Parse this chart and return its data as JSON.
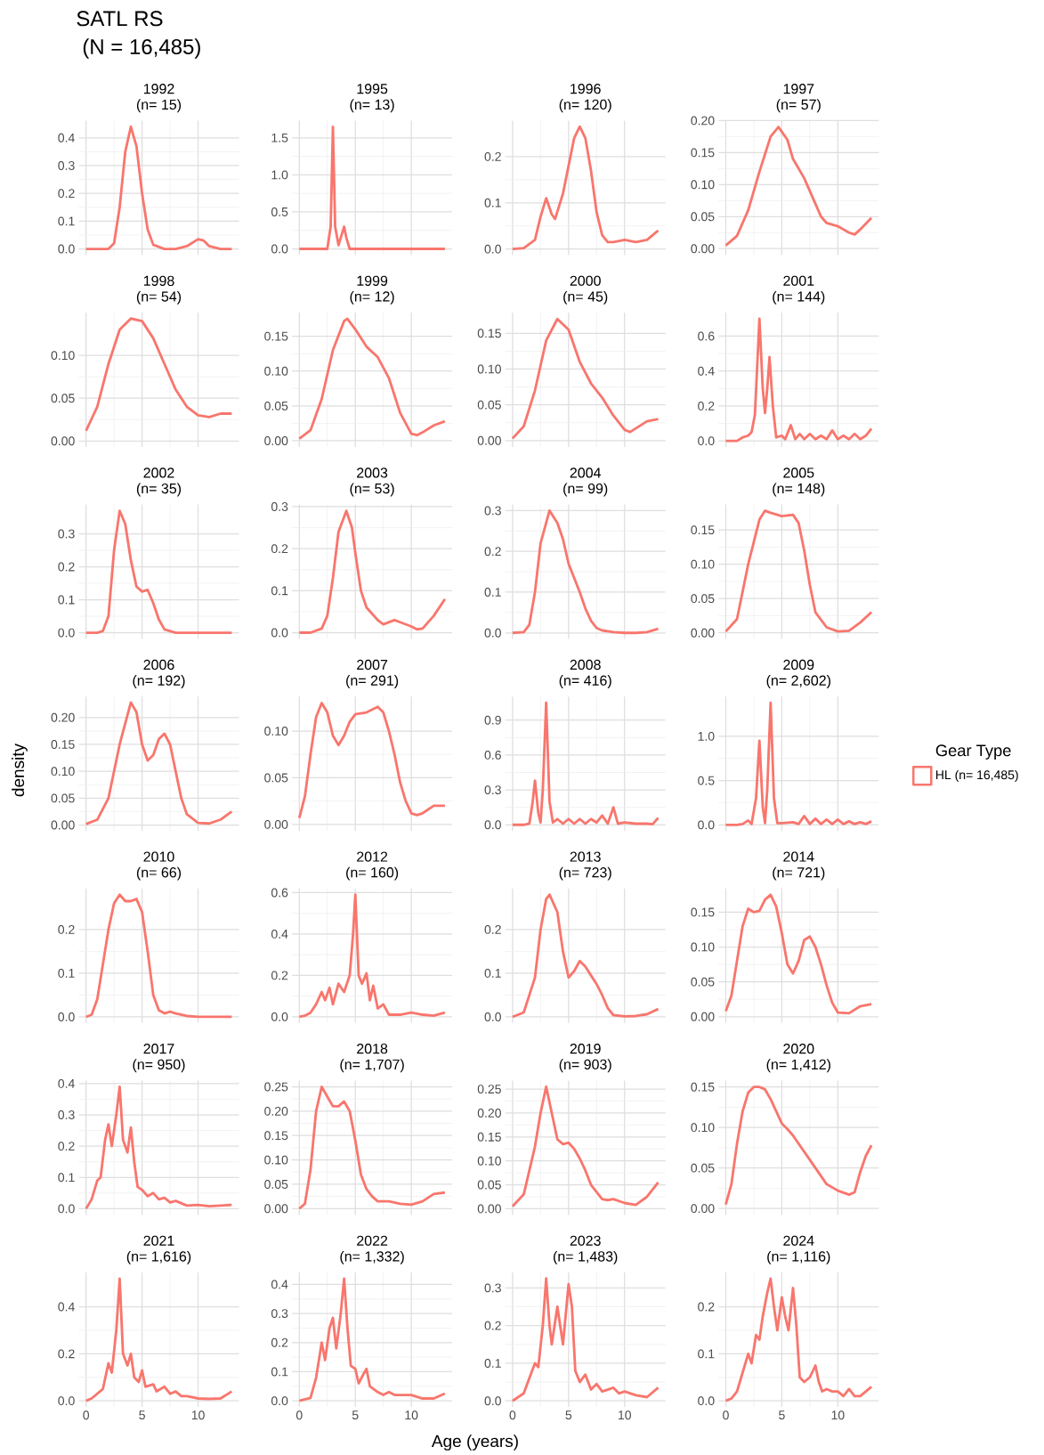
{
  "chart_data": [
    {
      "type": "other",
      "title": "SATL RS",
      "subtitle": "(N = 16,485)",
      "xlabel": "Age (years)",
      "ylabel": "density"
    },
    {
      "type": "line",
      "title": "1992",
      "subtitle": "(n= 15)",
      "xlim": [
        -0.65,
        13.65
      ],
      "xticks": [
        0,
        5,
        10
      ],
      "ylim": [
        -0.022,
        0.462
      ],
      "yticks": [
        {
          "value": 0,
          "label": "0.0"
        },
        0.1,
        0.2,
        0.3,
        0.4
      ],
      "grid": true,
      "tick_labels": "y",
      "series": [
        {
          "color": "#f8766d",
          "x": [
            0,
            2,
            2.5,
            3,
            3.5,
            4,
            4.5,
            5,
            5.5,
            6,
            7,
            8,
            9,
            10,
            10.5,
            11,
            12,
            13
          ],
          "values": [
            0,
            0,
            0.02,
            0.15,
            0.35,
            0.44,
            0.37,
            0.2,
            0.07,
            0.015,
            0,
            0,
            0.01,
            0.035,
            0.03,
            0.01,
            0,
            0
          ]
        }
      ]
    },
    {
      "type": "line",
      "title": "1995",
      "subtitle": "(n= 13)",
      "xlim": [
        -0.65,
        13.65
      ],
      "xticks": [
        0,
        5,
        10
      ],
      "ylim": [
        -0.083,
        1.733
      ],
      "yticks": [
        {
          "value": 0,
          "label": "0.0"
        },
        0.5,
        {
          "value": 1,
          "label": "1.0"
        },
        1.5
      ],
      "grid": true,
      "tick_labels": "y",
      "series": [
        {
          "color": "#f8766d",
          "x": [
            0,
            2.5,
            2.8,
            3,
            3.2,
            3.5,
            3.8,
            4,
            4.2,
            4.5,
            13
          ],
          "values": [
            0,
            0,
            0.3,
            1.65,
            0.3,
            0.05,
            0.2,
            0.3,
            0.15,
            0,
            0
          ]
        }
      ]
    },
    {
      "type": "line",
      "title": "1996",
      "subtitle": "(n= 120)",
      "xlim": [
        -0.65,
        13.65
      ],
      "xticks": [
        0,
        5,
        10
      ],
      "ylim": [
        -0.013,
        0.278
      ],
      "yticks": [
        {
          "value": 0,
          "label": "0.0"
        },
        0.1,
        0.2
      ],
      "grid": true,
      "tick_labels": "y",
      "series": [
        {
          "color": "#f8766d",
          "x": [
            0,
            1,
            2,
            2.5,
            3,
            3.5,
            3.8,
            4.5,
            5,
            5.5,
            6,
            6.5,
            7,
            7.5,
            8,
            8.5,
            9,
            10,
            11,
            12,
            13
          ],
          "values": [
            0,
            0.002,
            0.02,
            0.07,
            0.11,
            0.075,
            0.065,
            0.12,
            0.18,
            0.24,
            0.265,
            0.24,
            0.17,
            0.08,
            0.03,
            0.015,
            0.015,
            0.02,
            0.015,
            0.02,
            0.04
          ]
        }
      ]
    },
    {
      "type": "line",
      "title": "1997",
      "subtitle": "(n= 57)",
      "xlim": [
        -0.65,
        13.65
      ],
      "xticks": [
        0,
        5,
        10
      ],
      "ylim": [
        -0.01,
        0.2
      ],
      "yticks": [
        {
          "value": 0,
          "label": "0.00"
        },
        0.05,
        {
          "value": 0.1,
          "label": "0.10"
        },
        0.15,
        {
          "value": 0.2,
          "label": "0.20"
        }
      ],
      "grid": true,
      "tick_labels": "y",
      "series": [
        {
          "color": "#f8766d",
          "x": [
            0,
            1,
            2,
            3,
            4,
            4.7,
            5.5,
            6,
            7,
            8,
            8.5,
            9,
            10,
            11,
            11.5,
            12,
            13
          ],
          "values": [
            0.005,
            0.02,
            0.06,
            0.12,
            0.175,
            0.19,
            0.17,
            0.14,
            0.11,
            0.07,
            0.05,
            0.04,
            0.035,
            0.025,
            0.022,
            0.03,
            0.048
          ]
        }
      ]
    },
    {
      "type": "line",
      "title": "1998",
      "subtitle": "(n= 54)",
      "xlim": [
        -0.65,
        13.65
      ],
      "xticks": [
        0,
        5,
        10
      ],
      "ylim": [
        -0.007,
        0.15
      ],
      "yticks": [
        {
          "value": 0,
          "label": "0.00"
        },
        0.05,
        {
          "value": 0.1,
          "label": "0.10"
        }
      ],
      "grid": true,
      "tick_labels": "y",
      "series": [
        {
          "color": "#f8766d",
          "x": [
            0,
            1,
            2,
            3,
            4,
            5,
            6,
            7,
            8,
            9,
            10,
            11,
            12,
            13
          ],
          "values": [
            0.012,
            0.04,
            0.09,
            0.13,
            0.143,
            0.14,
            0.12,
            0.09,
            0.06,
            0.04,
            0.03,
            0.028,
            0.032,
            0.032
          ]
        }
      ]
    },
    {
      "type": "line",
      "title": "1999",
      "subtitle": "(n= 12)",
      "xlim": [
        -0.65,
        13.65
      ],
      "xticks": [
        0,
        5,
        10
      ],
      "ylim": [
        -0.009,
        0.184
      ],
      "yticks": [
        {
          "value": 0,
          "label": "0.00"
        },
        0.05,
        {
          "value": 0.1,
          "label": "0.10"
        },
        0.15
      ],
      "grid": true,
      "tick_labels": "y",
      "series": [
        {
          "color": "#f8766d",
          "x": [
            0,
            1,
            2,
            3,
            4,
            4.3,
            5,
            6,
            7,
            8,
            9,
            10,
            10.5,
            11,
            12,
            13
          ],
          "values": [
            0.003,
            0.015,
            0.06,
            0.13,
            0.172,
            0.175,
            0.16,
            0.135,
            0.12,
            0.09,
            0.04,
            0.01,
            0.008,
            0.012,
            0.022,
            0.028
          ]
        }
      ]
    },
    {
      "type": "line",
      "title": "2000",
      "subtitle": "(n= 45)",
      "xlim": [
        -0.65,
        13.65
      ],
      "xticks": [
        0,
        5,
        10
      ],
      "ylim": [
        -0.009,
        0.179
      ],
      "yticks": [
        {
          "value": 0,
          "label": "0.00"
        },
        0.05,
        {
          "value": 0.1,
          "label": "0.10"
        },
        0.15
      ],
      "grid": true,
      "tick_labels": "y",
      "series": [
        {
          "color": "#f8766d",
          "x": [
            0,
            1,
            2,
            3,
            4,
            5,
            6,
            7,
            8,
            9,
            10,
            10.5,
            11,
            12,
            13
          ],
          "values": [
            0.003,
            0.02,
            0.07,
            0.14,
            0.17,
            0.155,
            0.11,
            0.08,
            0.06,
            0.035,
            0.015,
            0.012,
            0.017,
            0.027,
            0.03
          ]
        }
      ]
    },
    {
      "type": "line",
      "title": "2001",
      "subtitle": "(n= 144)",
      "xlim": [
        -0.65,
        13.65
      ],
      "xticks": [
        0,
        5,
        10
      ],
      "ylim": [
        -0.035,
        0.735
      ],
      "yticks": [
        {
          "value": 0,
          "label": "0.0"
        },
        0.2,
        0.4,
        0.6
      ],
      "grid": true,
      "tick_labels": "y",
      "series": [
        {
          "color": "#f8766d",
          "x": [
            0,
            1,
            1.5,
            2,
            2.3,
            2.6,
            3,
            3.3,
            3.5,
            3.7,
            3.9,
            4.2,
            4.5,
            5,
            5.3,
            5.8,
            6.2,
            6.6,
            7,
            7.5,
            8,
            8.5,
            9,
            9.5,
            10,
            10.5,
            11,
            11.5,
            12,
            12.5,
            13
          ],
          "values": [
            0,
            0,
            0.02,
            0.03,
            0.05,
            0.15,
            0.7,
            0.3,
            0.16,
            0.3,
            0.48,
            0.2,
            0.02,
            0.03,
            0.01,
            0.09,
            0.01,
            0.04,
            0.01,
            0.04,
            0.01,
            0.03,
            0.01,
            0.06,
            0.01,
            0.03,
            0.01,
            0.04,
            0.01,
            0.03,
            0.07
          ]
        }
      ]
    },
    {
      "type": "line",
      "title": "2002",
      "subtitle": "(n= 35)",
      "xlim": [
        -0.65,
        13.65
      ],
      "xticks": [
        0,
        5,
        10
      ],
      "ylim": [
        -0.019,
        0.389
      ],
      "yticks": [
        {
          "value": 0,
          "label": "0.0"
        },
        0.1,
        0.2,
        0.3
      ],
      "grid": true,
      "tick_labels": "y",
      "series": [
        {
          "color": "#f8766d",
          "x": [
            0,
            1,
            1.5,
            2,
            2.5,
            3,
            3.5,
            4,
            4.5,
            5,
            5.5,
            6,
            6.5,
            7,
            8,
            13
          ],
          "values": [
            0,
            0,
            0.005,
            0.05,
            0.25,
            0.37,
            0.33,
            0.22,
            0.14,
            0.125,
            0.13,
            0.09,
            0.04,
            0.01,
            0,
            0
          ]
        }
      ]
    },
    {
      "type": "line",
      "title": "2003",
      "subtitle": "(n= 53)",
      "xlim": [
        -0.65,
        13.65
      ],
      "xticks": [
        0,
        5,
        10
      ],
      "ylim": [
        -0.015,
        0.305
      ],
      "yticks": [
        {
          "value": 0,
          "label": "0.0"
        },
        0.1,
        0.2,
        0.3
      ],
      "grid": true,
      "tick_labels": "y",
      "series": [
        {
          "color": "#f8766d",
          "x": [
            0,
            1,
            2,
            2.5,
            3,
            3.5,
            4.2,
            4.7,
            5,
            5.5,
            6,
            6.5,
            7,
            7.5,
            8,
            8.5,
            9,
            10,
            10.5,
            11,
            12,
            13
          ],
          "values": [
            0,
            0,
            0.01,
            0.04,
            0.13,
            0.24,
            0.29,
            0.25,
            0.19,
            0.1,
            0.06,
            0.045,
            0.03,
            0.02,
            0.025,
            0.03,
            0.025,
            0.015,
            0.008,
            0.01,
            0.04,
            0.08
          ]
        }
      ]
    },
    {
      "type": "line",
      "title": "2004",
      "subtitle": "(n= 99)",
      "xlim": [
        -0.65,
        13.65
      ],
      "xticks": [
        0,
        5,
        10
      ],
      "ylim": [
        -0.015,
        0.315
      ],
      "yticks": [
        {
          "value": 0,
          "label": "0.0"
        },
        0.1,
        0.2,
        0.3
      ],
      "grid": true,
      "tick_labels": "y",
      "series": [
        {
          "color": "#f8766d",
          "x": [
            0,
            1,
            1.5,
            2,
            2.5,
            3.3,
            4,
            4.5,
            5,
            6,
            6.5,
            7,
            7.5,
            8,
            9,
            10,
            11,
            12,
            13
          ],
          "values": [
            0,
            0.002,
            0.02,
            0.1,
            0.22,
            0.3,
            0.27,
            0.23,
            0.17,
            0.1,
            0.06,
            0.03,
            0.012,
            0.006,
            0.002,
            0,
            0,
            0.002,
            0.01
          ]
        }
      ]
    },
    {
      "type": "line",
      "title": "2005",
      "subtitle": "(n= 148)",
      "xlim": [
        -0.65,
        13.65
      ],
      "xticks": [
        0,
        5,
        10
      ],
      "ylim": [
        -0.009,
        0.187
      ],
      "yticks": [
        {
          "value": 0,
          "label": "0.00"
        },
        0.05,
        {
          "value": 0.1,
          "label": "0.10"
        },
        0.15
      ],
      "grid": true,
      "tick_labels": "y",
      "series": [
        {
          "color": "#f8766d",
          "x": [
            0,
            1,
            2,
            3,
            3.5,
            4,
            5,
            6,
            6.5,
            7,
            7.5,
            8,
            9,
            10,
            11,
            12,
            13
          ],
          "values": [
            0.002,
            0.02,
            0.1,
            0.165,
            0.178,
            0.175,
            0.17,
            0.172,
            0.16,
            0.12,
            0.07,
            0.03,
            0.008,
            0.002,
            0.003,
            0.015,
            0.03
          ]
        }
      ]
    },
    {
      "type": "line",
      "title": "2006",
      "subtitle": "(n= 192)",
      "xlim": [
        -0.65,
        13.65
      ],
      "xticks": [
        0,
        5,
        10
      ],
      "ylim": [
        -0.011,
        0.239
      ],
      "yticks": [
        {
          "value": 0,
          "label": "0.00"
        },
        0.05,
        {
          "value": 0.1,
          "label": "0.10"
        },
        0.15,
        {
          "value": 0.2,
          "label": "0.20"
        }
      ],
      "grid": true,
      "tick_labels": "y",
      "series": [
        {
          "color": "#f8766d",
          "x": [
            0,
            1,
            2,
            3,
            4,
            4.5,
            5,
            5.5,
            6,
            6.5,
            7,
            7.5,
            8,
            8.5,
            9,
            10,
            11,
            12,
            13
          ],
          "values": [
            0.002,
            0.01,
            0.05,
            0.15,
            0.228,
            0.21,
            0.15,
            0.12,
            0.13,
            0.16,
            0.17,
            0.15,
            0.1,
            0.05,
            0.02,
            0.004,
            0.003,
            0.01,
            0.025
          ]
        }
      ]
    },
    {
      "type": "line",
      "title": "2007",
      "subtitle": "(n= 291)",
      "xlim": [
        -0.65,
        13.65
      ],
      "xticks": [
        0,
        5,
        10
      ],
      "ylim": [
        -0.007,
        0.137
      ],
      "yticks": [
        {
          "value": 0,
          "label": "0.00"
        },
        0.05,
        {
          "value": 0.1,
          "label": "0.10"
        }
      ],
      "grid": true,
      "tick_labels": "y",
      "series": [
        {
          "color": "#f8766d",
          "x": [
            0,
            0.5,
            1,
            1.5,
            2,
            2.5,
            3,
            3.5,
            4,
            4.5,
            5,
            6,
            7,
            7.5,
            8,
            8.5,
            9,
            9.5,
            10,
            10.5,
            11,
            12,
            13
          ],
          "values": [
            0.007,
            0.03,
            0.075,
            0.115,
            0.13,
            0.12,
            0.095,
            0.085,
            0.095,
            0.11,
            0.118,
            0.12,
            0.126,
            0.12,
            0.1,
            0.075,
            0.045,
            0.025,
            0.012,
            0.01,
            0.012,
            0.02,
            0.02
          ]
        }
      ]
    },
    {
      "type": "line",
      "title": "2008",
      "subtitle": "(n= 416)",
      "xlim": [
        -0.65,
        13.65
      ],
      "xticks": [
        0,
        5,
        10
      ],
      "ylim": [
        -0.053,
        1.103
      ],
      "yticks": [
        {
          "value": 0,
          "label": "0.0"
        },
        0.3,
        0.6,
        0.9
      ],
      "grid": true,
      "tick_labels": "y",
      "series": [
        {
          "color": "#f8766d",
          "x": [
            0,
            1,
            1.5,
            1.8,
            2,
            2.3,
            2.5,
            2.7,
            3,
            3.3,
            3.6,
            4,
            4.5,
            5,
            5.5,
            6,
            6.5,
            7,
            7.5,
            8,
            8.5,
            9,
            9.4,
            10,
            11,
            12,
            12.5,
            13
          ],
          "values": [
            0,
            0,
            0.01,
            0.2,
            0.38,
            0.1,
            0.02,
            0.3,
            1.05,
            0.2,
            0.02,
            0.05,
            0.01,
            0.05,
            0.01,
            0.05,
            0.01,
            0.05,
            0.02,
            0.08,
            0.01,
            0.15,
            0.01,
            0.02,
            0.01,
            0.01,
            0.005,
            0.06
          ]
        }
      ]
    },
    {
      "type": "line",
      "title": "2009",
      "subtitle": "(n= 2,602)",
      "xlim": [
        -0.65,
        13.65
      ],
      "xticks": [
        0,
        5,
        10
      ],
      "ylim": [
        -0.069,
        1.449
      ],
      "yticks": [
        {
          "value": 0,
          "label": "0.0"
        },
        0.5,
        {
          "value": 1,
          "label": "1.0"
        }
      ],
      "grid": true,
      "tick_labels": "y",
      "legend": "right",
      "legend_title": "Gear Type",
      "series": [
        {
          "name": "HL (n= 16,485)",
          "color": "#f8766d",
          "x": [
            0,
            1,
            1.5,
            2,
            2.3,
            2.7,
            3,
            3.3,
            3.5,
            3.7,
            4,
            4.3,
            4.6,
            5,
            6,
            6.5,
            7,
            7.5,
            8,
            8.5,
            9,
            9.5,
            10,
            10.5,
            11,
            11.5,
            12,
            12.5,
            13
          ],
          "values": [
            0,
            0,
            0.01,
            0.05,
            0.01,
            0.3,
            0.95,
            0.2,
            0.02,
            0.4,
            1.38,
            0.3,
            0.02,
            0.02,
            0.03,
            0.01,
            0.1,
            0.01,
            0.07,
            0.01,
            0.06,
            0.01,
            0.06,
            0.01,
            0.04,
            0.01,
            0.03,
            0.01,
            0.04
          ]
        }
      ]
    },
    {
      "type": "line",
      "title": "2010",
      "subtitle": "(n= 66)",
      "xlim": [
        -0.65,
        13.65
      ],
      "xticks": [
        0,
        5,
        10
      ],
      "ylim": [
        -0.014,
        0.294
      ],
      "yticks": [
        {
          "value": 0,
          "label": "0.0"
        },
        0.1,
        0.2
      ],
      "grid": true,
      "tick_labels": "y",
      "series": [
        {
          "color": "#f8766d",
          "x": [
            0,
            0.5,
            1,
            1.5,
            2,
            2.5,
            3,
            3.5,
            4,
            4.5,
            5,
            5.5,
            6,
            6.5,
            7,
            7.5,
            8,
            9,
            10,
            13
          ],
          "values": [
            0,
            0.005,
            0.04,
            0.12,
            0.2,
            0.26,
            0.28,
            0.265,
            0.265,
            0.27,
            0.24,
            0.15,
            0.05,
            0.015,
            0.008,
            0.012,
            0.008,
            0.002,
            0,
            0
          ]
        }
      ]
    },
    {
      "type": "line",
      "title": "2012",
      "subtitle": "(n= 160)",
      "xlim": [
        -0.65,
        13.65
      ],
      "xticks": [
        0,
        5,
        10
      ],
      "ylim": [
        -0.03,
        0.62
      ],
      "yticks": [
        {
          "value": 0,
          "label": "0.0"
        },
        0.2,
        0.4,
        0.6
      ],
      "grid": true,
      "tick_labels": "y",
      "series": [
        {
          "color": "#f8766d",
          "x": [
            0,
            0.5,
            1,
            1.5,
            2,
            2.3,
            2.7,
            3,
            3.5,
            4,
            4.5,
            4.8,
            5,
            5.3,
            5.6,
            6,
            6.3,
            6.6,
            7,
            7.5,
            8,
            9,
            10,
            11,
            12,
            13
          ],
          "values": [
            0,
            0.005,
            0.02,
            0.06,
            0.12,
            0.08,
            0.14,
            0.06,
            0.16,
            0.12,
            0.2,
            0.4,
            0.59,
            0.2,
            0.16,
            0.21,
            0.08,
            0.15,
            0.04,
            0.06,
            0.01,
            0.01,
            0.02,
            0.01,
            0.005,
            0.02
          ]
        }
      ]
    },
    {
      "type": "line",
      "title": "2013",
      "subtitle": "(n= 723)",
      "xlim": [
        -0.65,
        13.65
      ],
      "xticks": [
        0,
        5,
        10
      ],
      "ylim": [
        -0.014,
        0.294
      ],
      "yticks": [
        {
          "value": 0,
          "label": "0.0"
        },
        0.1,
        0.2
      ],
      "grid": true,
      "tick_labels": "y",
      "series": [
        {
          "color": "#f8766d",
          "x": [
            0,
            1,
            2,
            2.5,
            3,
            3.3,
            4,
            4.5,
            5,
            5.5,
            6,
            6.5,
            7,
            7.5,
            8,
            8.5,
            9,
            10,
            11,
            12,
            13
          ],
          "values": [
            0,
            0.01,
            0.09,
            0.2,
            0.27,
            0.28,
            0.24,
            0.15,
            0.09,
            0.105,
            0.128,
            0.115,
            0.095,
            0.075,
            0.05,
            0.02,
            0.004,
            0.001,
            0.002,
            0.006,
            0.018
          ]
        }
      ]
    },
    {
      "type": "line",
      "title": "2014",
      "subtitle": "(n= 721)",
      "xlim": [
        -0.65,
        13.65
      ],
      "xticks": [
        0,
        5,
        10
      ],
      "ylim": [
        -0.009,
        0.184
      ],
      "yticks": [
        {
          "value": 0,
          "label": "0.00"
        },
        0.05,
        {
          "value": 0.1,
          "label": "0.10"
        },
        0.15
      ],
      "grid": true,
      "tick_labels": "y",
      "series": [
        {
          "color": "#f8766d",
          "x": [
            0,
            0.5,
            1,
            1.5,
            2,
            2.5,
            3,
            3.5,
            4,
            4.5,
            5,
            5.5,
            6,
            6.5,
            7,
            7.5,
            8,
            8.5,
            9,
            9.5,
            10,
            11,
            12,
            13
          ],
          "values": [
            0.008,
            0.03,
            0.08,
            0.13,
            0.155,
            0.15,
            0.152,
            0.168,
            0.175,
            0.158,
            0.12,
            0.075,
            0.062,
            0.08,
            0.11,
            0.115,
            0.1,
            0.075,
            0.045,
            0.02,
            0.006,
            0.005,
            0.015,
            0.018
          ]
        }
      ]
    },
    {
      "type": "line",
      "title": "2017",
      "subtitle": "(n= 950)",
      "xlim": [
        -0.65,
        13.65
      ],
      "xticks": [
        0,
        5,
        10
      ],
      "ylim": [
        -0.02,
        0.41
      ],
      "yticks": [
        {
          "value": 0,
          "label": "0.0"
        },
        0.1,
        0.2,
        0.3,
        0.4
      ],
      "grid": true,
      "tick_labels": "y",
      "series": [
        {
          "color": "#f8766d",
          "x": [
            0,
            0.5,
            1,
            1.3,
            1.7,
            2,
            2.3,
            2.7,
            3,
            3.3,
            3.7,
            4,
            4.3,
            4.6,
            5,
            5.5,
            6,
            6.5,
            7,
            7.5,
            8,
            9,
            10,
            11,
            12,
            13
          ],
          "values": [
            0,
            0.03,
            0.09,
            0.1,
            0.22,
            0.27,
            0.2,
            0.3,
            0.39,
            0.22,
            0.18,
            0.26,
            0.15,
            0.07,
            0.06,
            0.04,
            0.05,
            0.03,
            0.035,
            0.02,
            0.025,
            0.01,
            0.012,
            0.008,
            0.01,
            0.012
          ]
        }
      ]
    },
    {
      "type": "line",
      "title": "2018",
      "subtitle": "(n= 1,707)",
      "xlim": [
        -0.65,
        13.65
      ],
      "xticks": [
        0,
        5,
        10
      ],
      "ylim": [
        -0.013,
        0.263
      ],
      "yticks": [
        {
          "value": 0,
          "label": "0.00"
        },
        0.05,
        {
          "value": 0.1,
          "label": "0.10"
        },
        0.15,
        {
          "value": 0.2,
          "label": "0.20"
        },
        0.25
      ],
      "grid": true,
      "tick_labels": "y",
      "series": [
        {
          "color": "#f8766d",
          "x": [
            0,
            0.5,
            1,
            1.5,
            2,
            2.5,
            3,
            3.5,
            4,
            4.5,
            5,
            5.5,
            6,
            6.5,
            7,
            8,
            9,
            10,
            11,
            12,
            13
          ],
          "values": [
            0,
            0.01,
            0.08,
            0.2,
            0.25,
            0.23,
            0.21,
            0.21,
            0.22,
            0.2,
            0.14,
            0.07,
            0.04,
            0.025,
            0.015,
            0.015,
            0.01,
            0.008,
            0.015,
            0.03,
            0.033
          ]
        }
      ]
    },
    {
      "type": "line",
      "title": "2019",
      "subtitle": "(n= 903)",
      "xlim": [
        -0.65,
        13.65
      ],
      "xticks": [
        0,
        5,
        10
      ],
      "ylim": [
        -0.013,
        0.268
      ],
      "yticks": [
        {
          "value": 0,
          "label": "0.00"
        },
        0.05,
        {
          "value": 0.1,
          "label": "0.10"
        },
        0.15,
        {
          "value": 0.2,
          "label": "0.20"
        },
        0.25
      ],
      "grid": true,
      "tick_labels": "y",
      "series": [
        {
          "color": "#f8766d",
          "x": [
            0,
            1,
            2,
            2.5,
            3,
            3.5,
            4,
            4.5,
            5,
            5.5,
            6,
            6.5,
            7,
            7.5,
            8,
            8.5,
            9,
            10,
            11,
            12,
            13
          ],
          "values": [
            0.005,
            0.03,
            0.13,
            0.2,
            0.255,
            0.2,
            0.145,
            0.135,
            0.138,
            0.125,
            0.105,
            0.08,
            0.05,
            0.035,
            0.02,
            0.018,
            0.02,
            0.012,
            0.008,
            0.025,
            0.055
          ]
        }
      ]
    },
    {
      "type": "line",
      "title": "2020",
      "subtitle": "(n= 1,412)",
      "xlim": [
        -0.65,
        13.65
      ],
      "xticks": [
        0,
        5,
        10
      ],
      "ylim": [
        -0.008,
        0.158
      ],
      "yticks": [
        {
          "value": 0,
          "label": "0.00"
        },
        0.05,
        {
          "value": 0.1,
          "label": "0.10"
        },
        0.15
      ],
      "grid": true,
      "tick_labels": "y",
      "series": [
        {
          "color": "#f8766d",
          "x": [
            0,
            0.5,
            1,
            1.5,
            2,
            2.5,
            3,
            3.5,
            4,
            4.5,
            5,
            5.5,
            6,
            7,
            8,
            9,
            10,
            11,
            11.5,
            12,
            12.5,
            13
          ],
          "values": [
            0.005,
            0.03,
            0.08,
            0.12,
            0.143,
            0.15,
            0.15,
            0.147,
            0.135,
            0.12,
            0.105,
            0.098,
            0.09,
            0.07,
            0.05,
            0.03,
            0.022,
            0.017,
            0.02,
            0.045,
            0.065,
            0.078
          ]
        }
      ]
    },
    {
      "type": "line",
      "title": "2021",
      "subtitle": "(n= 1,616)",
      "xlim": [
        -0.65,
        13.65
      ],
      "xticks": [
        0,
        5,
        10
      ],
      "ylim": [
        -0.026,
        0.546
      ],
      "yticks": [
        {
          "value": 0,
          "label": "0.0"
        },
        0.2,
        0.4
      ],
      "grid": true,
      "series": [
        {
          "color": "#f8766d",
          "x": [
            0,
            0.5,
            1,
            1.5,
            2,
            2.3,
            2.7,
            3,
            3.3,
            3.7,
            4,
            4.3,
            4.7,
            5,
            5.3,
            6,
            6.3,
            7,
            7.5,
            8,
            8.5,
            9,
            10,
            11,
            12,
            13
          ],
          "values": [
            0,
            0.01,
            0.03,
            0.05,
            0.16,
            0.12,
            0.3,
            0.52,
            0.2,
            0.15,
            0.2,
            0.1,
            0.08,
            0.13,
            0.06,
            0.07,
            0.04,
            0.06,
            0.03,
            0.04,
            0.02,
            0.02,
            0.01,
            0.008,
            0.01,
            0.04
          ]
        }
      ]
    },
    {
      "type": "line",
      "title": "2022",
      "subtitle": "(n= 1,332)",
      "xlim": [
        -0.65,
        13.65
      ],
      "xticks": [
        0,
        5,
        10
      ],
      "ylim": [
        -0.021,
        0.441
      ],
      "yticks": [
        {
          "value": 0,
          "label": "0.0"
        },
        0.1,
        0.2,
        0.3,
        0.4
      ],
      "grid": true,
      "series": [
        {
          "color": "#f8766d",
          "x": [
            0,
            0.5,
            1,
            1.5,
            2,
            2.3,
            2.7,
            3,
            3.3,
            3.7,
            4,
            4.3,
            4.6,
            5,
            5.3,
            5.7,
            6,
            6.3,
            7,
            7.5,
            8,
            8.5,
            9,
            10,
            11,
            12,
            13
          ],
          "values": [
            0,
            0.005,
            0.01,
            0.08,
            0.2,
            0.14,
            0.25,
            0.285,
            0.18,
            0.3,
            0.42,
            0.25,
            0.12,
            0.11,
            0.06,
            0.09,
            0.11,
            0.05,
            0.03,
            0.02,
            0.03,
            0.02,
            0.02,
            0.02,
            0.008,
            0.008,
            0.025
          ]
        }
      ]
    },
    {
      "type": "line",
      "title": "2023",
      "subtitle": "(n= 1,483)",
      "xlim": [
        -0.65,
        13.65
      ],
      "xticks": [
        0,
        5,
        10
      ],
      "ylim": [
        -0.016,
        0.341
      ],
      "yticks": [
        {
          "value": 0,
          "label": "0.0"
        },
        0.1,
        0.2,
        0.3
      ],
      "grid": true,
      "series": [
        {
          "color": "#f8766d",
          "x": [
            0,
            0.5,
            1,
            1.5,
            2,
            2.3,
            2.7,
            3,
            3.3,
            3.5,
            4,
            4.5,
            5,
            5.3,
            5.6,
            6,
            6.5,
            7,
            7.5,
            8,
            8.5,
            9,
            9.5,
            10,
            11,
            12,
            13
          ],
          "values": [
            0,
            0.01,
            0.02,
            0.06,
            0.1,
            0.09,
            0.2,
            0.325,
            0.2,
            0.15,
            0.25,
            0.15,
            0.31,
            0.25,
            0.08,
            0.05,
            0.07,
            0.03,
            0.045,
            0.025,
            0.03,
            0.035,
            0.02,
            0.025,
            0.015,
            0.01,
            0.035
          ]
        }
      ]
    },
    {
      "type": "line",
      "title": "2024",
      "subtitle": "(n= 1,116)",
      "xlim": [
        -0.65,
        13.65
      ],
      "xticks": [
        0,
        5,
        10
      ],
      "ylim": [
        -0.013,
        0.273
      ],
      "yticks": [
        {
          "value": 0,
          "label": "0.0"
        },
        0.1,
        0.2
      ],
      "grid": true,
      "series": [
        {
          "color": "#f8766d",
          "x": [
            0,
            0.5,
            1,
            1.5,
            2,
            2.3,
            2.7,
            3,
            3.3,
            3.7,
            4,
            4.3,
            4.6,
            5,
            5.3,
            5.6,
            6,
            6.3,
            6.6,
            7,
            7.5,
            8,
            8.3,
            8.6,
            9,
            9.5,
            10,
            10.5,
            11,
            11.5,
            12,
            13
          ],
          "values": [
            0,
            0.005,
            0.02,
            0.06,
            0.1,
            0.08,
            0.14,
            0.13,
            0.18,
            0.23,
            0.26,
            0.2,
            0.15,
            0.22,
            0.18,
            0.15,
            0.24,
            0.16,
            0.05,
            0.04,
            0.05,
            0.075,
            0.04,
            0.02,
            0.025,
            0.02,
            0.02,
            0.01,
            0.025,
            0.01,
            0.01,
            0.03
          ]
        }
      ]
    }
  ]
}
